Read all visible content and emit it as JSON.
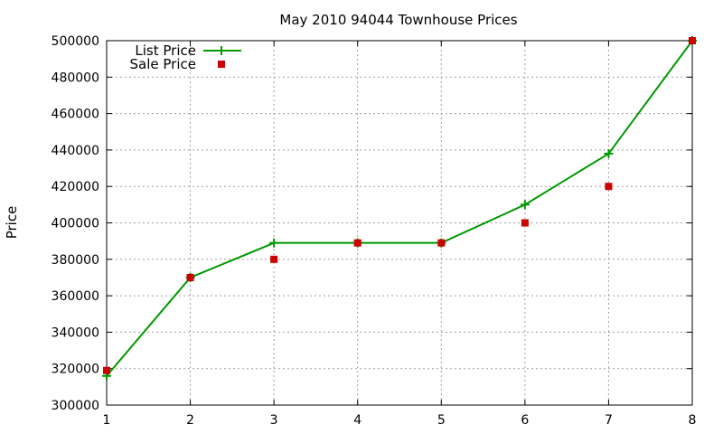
{
  "chart_data": {
    "type": "line",
    "title": "May 2010 94044 Townhouse Prices",
    "xlabel": "",
    "ylabel": "Price",
    "x": [
      1,
      2,
      3,
      4,
      5,
      6,
      7,
      8
    ],
    "xlim": [
      1,
      8
    ],
    "ylim": [
      300000,
      500000
    ],
    "x_ticks": [
      "1",
      "2",
      "3",
      "4",
      "5",
      "6",
      "7",
      "8"
    ],
    "y_ticks": [
      "300000",
      "320000",
      "340000",
      "360000",
      "380000",
      "400000",
      "420000",
      "440000",
      "460000",
      "480000",
      "500000"
    ],
    "grid": true,
    "legend_position": "top-left",
    "series": [
      {
        "name": "List Price",
        "style": "line-with-plus-markers",
        "color": "#009900",
        "values": [
          316000,
          370000,
          389000,
          389000,
          389000,
          410000,
          438000,
          500000
        ]
      },
      {
        "name": "Sale Price",
        "style": "square-points",
        "color": "#cc0000",
        "values": [
          319000,
          370000,
          380000,
          389000,
          389000,
          400000,
          420000,
          500000
        ]
      }
    ]
  }
}
